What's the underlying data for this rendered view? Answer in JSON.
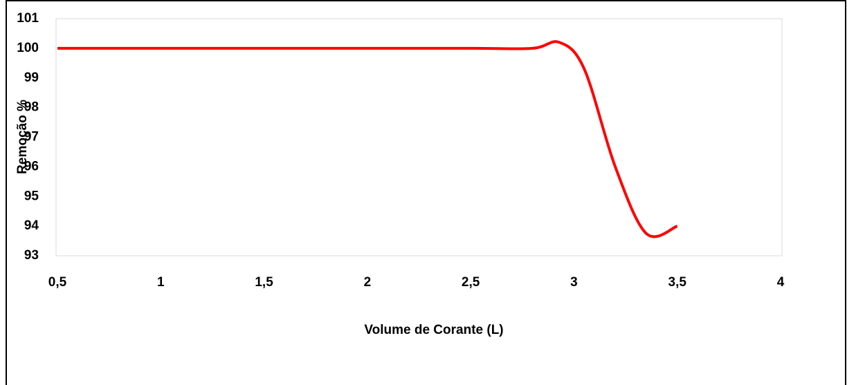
{
  "chart_data": {
    "type": "line",
    "x_label": "Volume de Corante (L)",
    "y_label": "Remoção %",
    "x": [
      0.5,
      1,
      1.5,
      2,
      2.5,
      2.8,
      2.93,
      3.05,
      3.2,
      3.35,
      3.5
    ],
    "series": [
      {
        "name": "Remoção",
        "color": "#ff0000",
        "values": [
          100,
          100,
          100,
          100,
          100,
          100,
          100.2,
          99.3,
          96,
          93.75,
          94
        ]
      }
    ],
    "xlim": [
      0.5,
      4
    ],
    "xticks": [
      {
        "value": 0.5,
        "label": "0,5"
      },
      1,
      {
        "value": 1.5,
        "label": "1,5"
      },
      2,
      {
        "value": 2.5,
        "label": "2,5"
      },
      3,
      {
        "value": 3.5,
        "label": "3,5"
      },
      4
    ],
    "ylim": [
      93,
      101
    ],
    "yticks": [
      93,
      94,
      95,
      96,
      97,
      98,
      99,
      100,
      101
    ],
    "grid": false,
    "smooth": true
  }
}
